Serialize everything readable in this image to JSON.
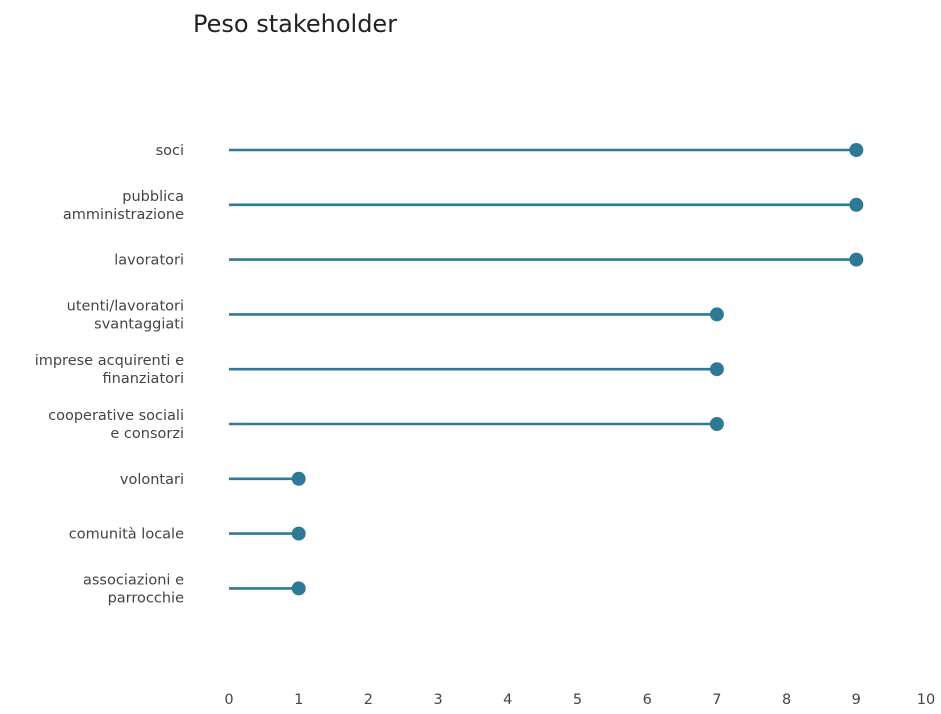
{
  "chart_data": {
    "type": "lollipop",
    "title": "Peso stakeholder",
    "xlabel": "",
    "ylabel": "",
    "xlim": [
      0,
      10
    ],
    "xticks": [
      0,
      1,
      2,
      3,
      4,
      5,
      6,
      7,
      8,
      9,
      10
    ],
    "grid": false,
    "color": "#2e7a96",
    "categories": [
      [
        "soci"
      ],
      [
        "pubblica",
        "amministrazione"
      ],
      [
        "lavoratori"
      ],
      [
        "utenti/lavoratori",
        "svantaggiati"
      ],
      [
        "imprese acquirenti e",
        "finanziatori"
      ],
      [
        "cooperative sociali",
        "e consorzi"
      ],
      [
        "volontari"
      ],
      [
        "comunità locale"
      ],
      [
        "associazioni e",
        "parrocchie"
      ]
    ],
    "values": [
      9,
      9,
      9,
      7,
      7,
      7,
      1,
      1,
      1
    ]
  }
}
